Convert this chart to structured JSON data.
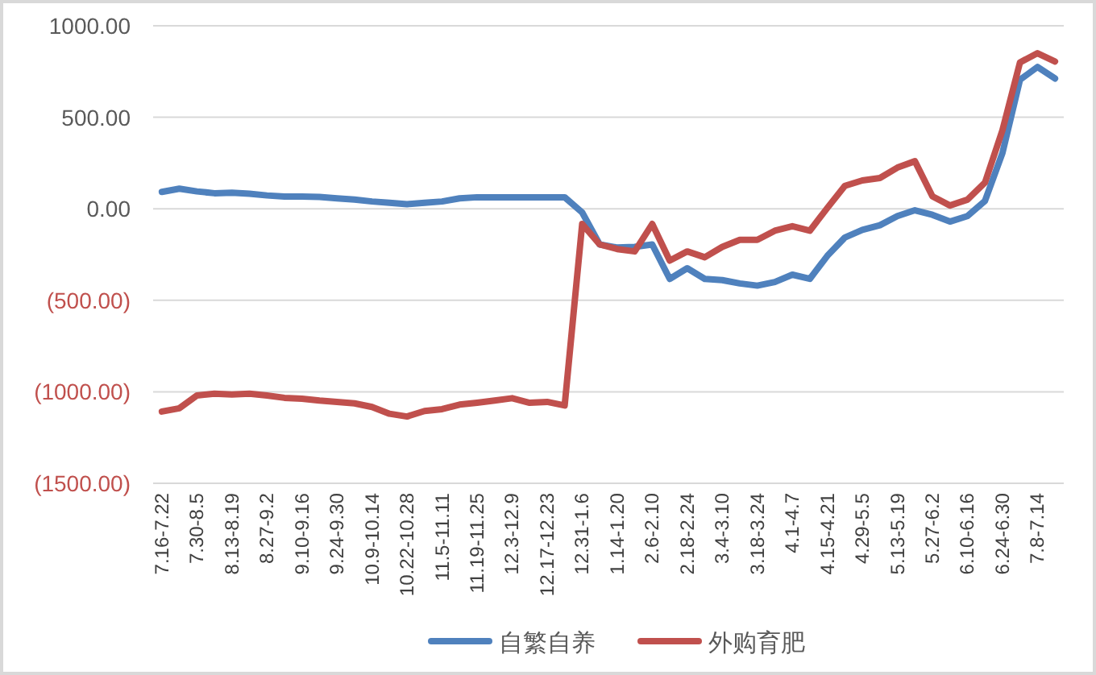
{
  "chart_data": {
    "type": "line",
    "categories": [
      "7.16-7.22",
      null,
      "7.30-8.5",
      null,
      "8.13-8.19",
      null,
      "8.27-9.2",
      null,
      "9.10-9.16",
      null,
      "9.24-9.30",
      null,
      "10.9-10.14",
      null,
      "10.22-10.28",
      null,
      "11.5-11.11",
      null,
      "11.19-11.25",
      null,
      "12.3-12.9",
      null,
      "12.17-12.23",
      null,
      "12.31-1.6",
      null,
      "1.14-1.20",
      null,
      "2.6-2.10",
      null,
      "2.18-2.24",
      null,
      "3.4-3.10",
      null,
      "3.18-3.24",
      null,
      "4.1-4.7",
      null,
      "4.15-4.21",
      null,
      "4.29-5.5",
      null,
      "5.13-5.19",
      null,
      "5.27-6.2",
      null,
      "6.10-6.16",
      null,
      "6.24-6.30",
      null,
      "7.8-7.14",
      null
    ],
    "series": [
      {
        "name": "自繁自养",
        "color": "#4f81bd",
        "values": [
          92,
          110,
          95,
          85,
          88,
          82,
          73,
          67,
          67,
          65,
          57,
          50,
          40,
          33,
          25,
          33,
          40,
          57,
          63,
          63,
          63,
          63,
          63,
          63,
          -20,
          -195,
          -212,
          -208,
          -195,
          -383,
          -325,
          -383,
          -390,
          -408,
          -420,
          -400,
          -360,
          -383,
          -257,
          -157,
          -115,
          -90,
          -40,
          -8,
          -33,
          -70,
          -40,
          43,
          305,
          705,
          775,
          712
        ]
      },
      {
        "name": "外购育肥",
        "color": "#c0504d",
        "values": [
          -1108,
          -1090,
          -1020,
          -1010,
          -1015,
          -1010,
          -1020,
          -1033,
          -1038,
          -1048,
          -1055,
          -1063,
          -1083,
          -1120,
          -1135,
          -1105,
          -1095,
          -1070,
          -1060,
          -1048,
          -1035,
          -1060,
          -1055,
          -1075,
          -83,
          -195,
          -220,
          -233,
          -83,
          -283,
          -233,
          -265,
          -208,
          -170,
          -170,
          -120,
          -95,
          -120,
          5,
          125,
          155,
          168,
          225,
          260,
          68,
          18,
          50,
          143,
          430,
          800,
          850,
          805
        ]
      }
    ],
    "ylim": [
      -1500,
      1000
    ],
    "yticks": [
      {
        "value": 1000,
        "label": "1000.00"
      },
      {
        "value": 500,
        "label": "500.00"
      },
      {
        "value": 0,
        "label": "0.00"
      },
      {
        "value": -500,
        "label": "(500.00)"
      },
      {
        "value": -1000,
        "label": "(1000.00)"
      },
      {
        "value": -1500,
        "label": "(1500.00)"
      }
    ],
    "grid": "y",
    "legend": "bottom",
    "marker": "none",
    "line_style": "solid"
  }
}
